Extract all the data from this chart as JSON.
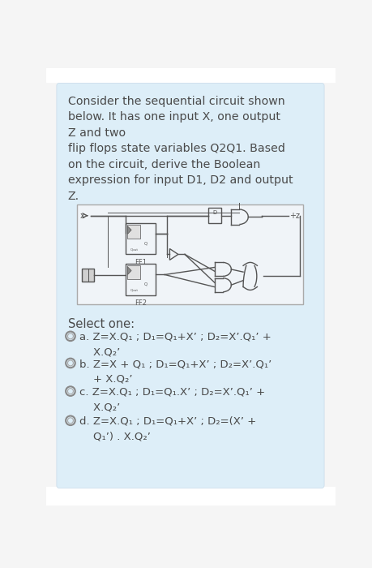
{
  "bg_outer": "#e8e8e8",
  "bg_page": "#f5f5f5",
  "card_color": "#ddeef8",
  "text_color": "#4a4a4a",
  "title_text": "Consider the sequential circuit shown\nbelow. It has one input X, one output\nZ and two\nflip flops state variables Q2Q1. Based\non the circuit, derive the Boolean\nexpression for input D1, D2 and output\nZ.",
  "select_label": "Select one:",
  "options": [
    "a. Z=X.Q₁ ; D₁=Q₁+X’ ; D₂=X’.Q₁’ +\n    X.Q₂’",
    "b. Z=X + Q₁ ; D₁=Q₁+X’ ; D₂=X’.Q₁’\n    + X.Q₂’",
    "c. Z=X.Q₁ ; D₁=Q₁.X’ ; D₂=X’.Q₁’ +\n    X.Q₂’",
    "d. Z=X.Q₁ ; D₁=Q₁+X’ ; D₂=(X’ +\n    Q₁’) . X.Q₂’"
  ],
  "figsize": [
    4.6,
    7.0
  ],
  "dpi": 100
}
